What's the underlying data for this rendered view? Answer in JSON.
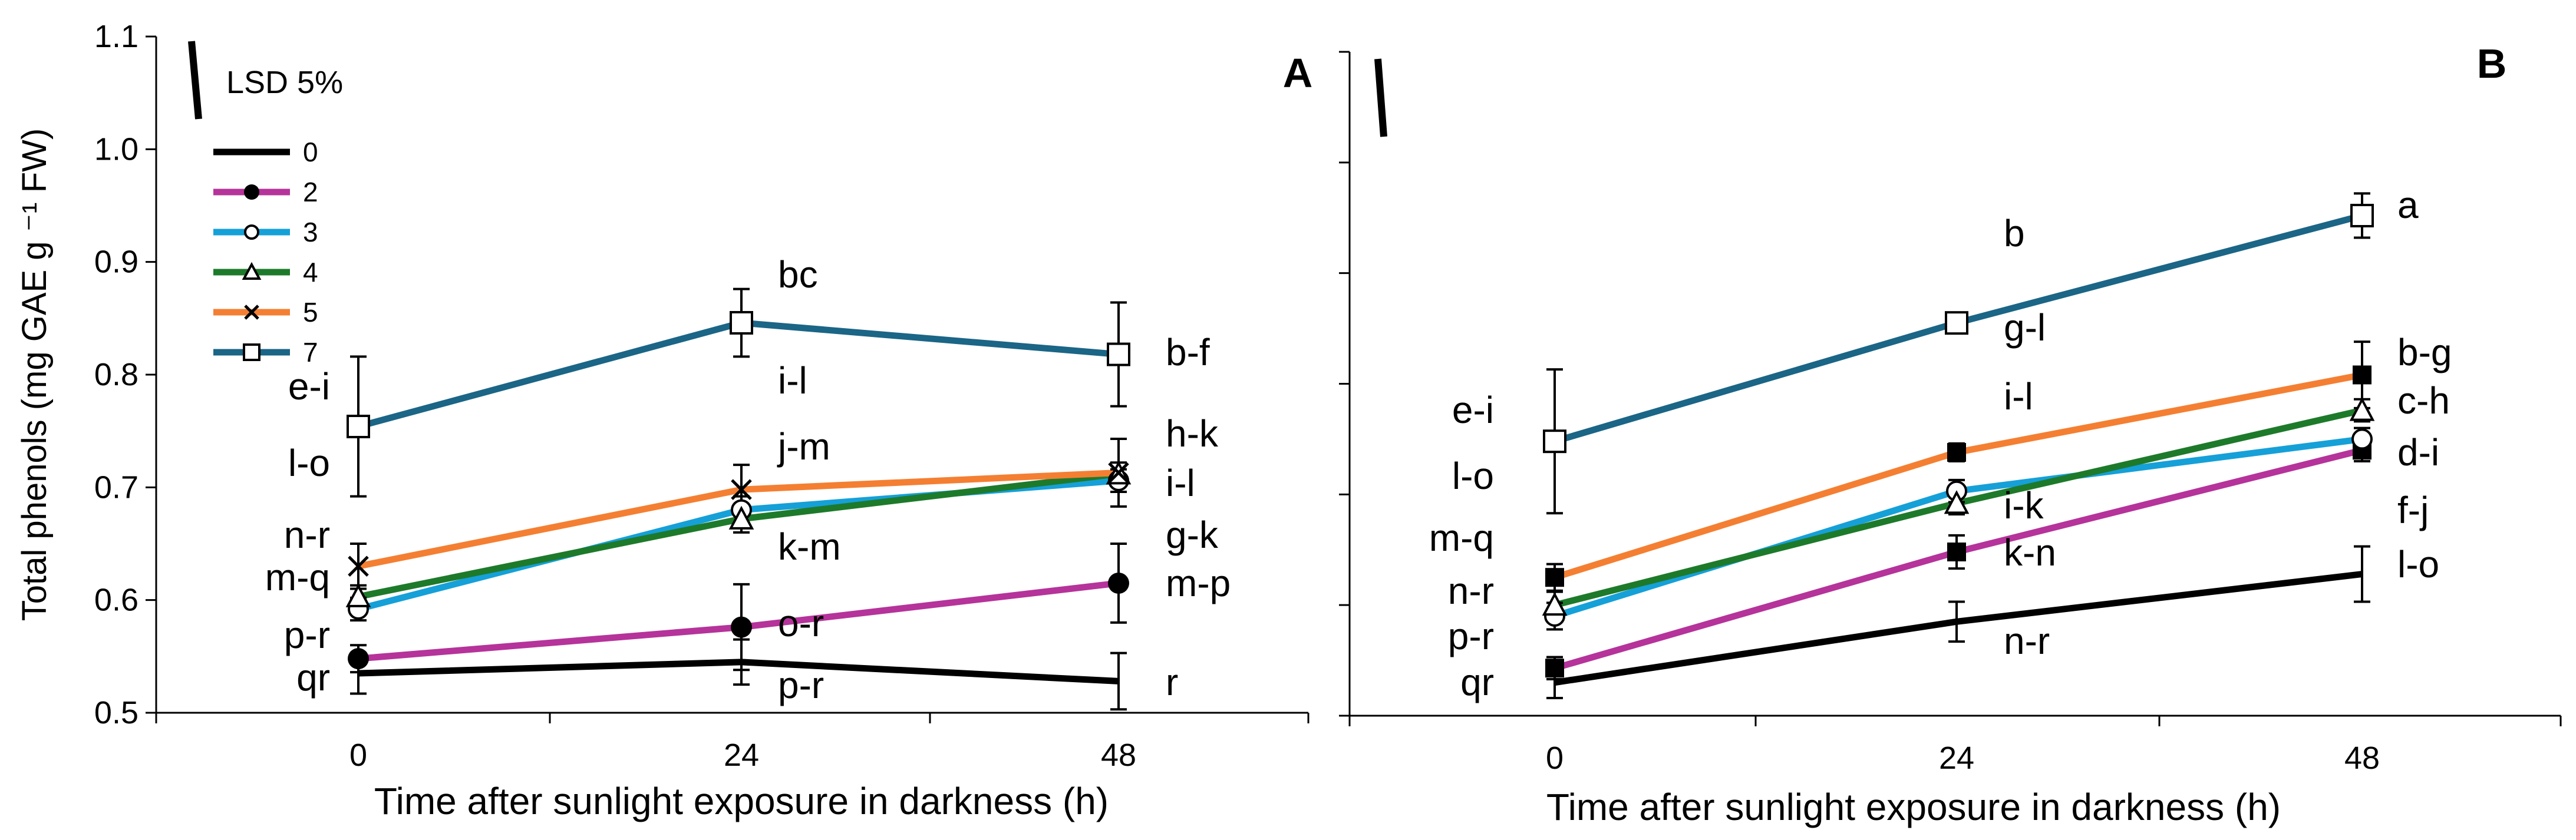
{
  "chart_data": [
    {
      "panel": "A",
      "type": "line",
      "ylabel": "Total phenols (mg GAE g ⁻¹ FW)",
      "xlabel": "Time after sunlight exposure in darkness (h)",
      "x": [
        0,
        24,
        48
      ],
      "x_ticks": [
        "0",
        "24",
        "48"
      ],
      "y_ticks": [
        "0.5",
        "0.6",
        "0.7",
        "0.8",
        "0.9",
        "1.0",
        "1.1"
      ],
      "ylim": [
        0.5,
        1.1
      ],
      "lsd_label": "LSD 5%",
      "lsd_value": 0.07,
      "series": [
        {
          "name": "0",
          "color": "#000000",
          "marker": "none",
          "values": [
            0.535,
            0.545,
            0.528
          ],
          "err": [
            0.018,
            0.02,
            0.025
          ],
          "letters": [
            "qr",
            "p-r",
            "r"
          ]
        },
        {
          "name": "2",
          "color": "#b5339a",
          "marker": "filled-circle",
          "values": [
            0.548,
            0.576,
            0.615
          ],
          "err": [
            0.012,
            0.038,
            0.035
          ],
          "letters": [
            "p-r",
            "o-r",
            "m-p"
          ]
        },
        {
          "name": "3",
          "color": "#15a0d8",
          "marker": "open-circle",
          "values": [
            0.592,
            0.68,
            0.706
          ],
          "err": [
            0.01,
            0.012,
            0.01
          ],
          "letters": [
            "m-q",
            "k-m",
            "i-l"
          ]
        },
        {
          "name": "4",
          "color": "#1d7a2a",
          "marker": "open-triangle",
          "values": [
            0.603,
            0.672,
            0.712
          ],
          "err": [
            0.01,
            0.012,
            0.01
          ],
          "letters": [
            "m-q",
            "k-m",
            "g-k"
          ]
        },
        {
          "name": "5",
          "color": "#f47f32",
          "marker": "x",
          "values": [
            0.63,
            0.698,
            0.713
          ],
          "err": [
            0.02,
            0.022,
            0.03
          ],
          "letters": [
            "n-r",
            "j-m",
            "h-k"
          ]
        },
        {
          "name": "7",
          "color": "#1b6586",
          "marker": "open-square",
          "values": [
            0.754,
            0.846,
            0.818
          ],
          "err": [
            0.062,
            0.03,
            0.046
          ],
          "letters": [
            "e-i",
            "bc",
            "b-f"
          ]
        }
      ],
      "left_letters": [
        "e-i",
        "l-o",
        "n-r",
        "m-q",
        "p-r",
        "qr"
      ],
      "mid_letters": [
        "bc",
        "i-l",
        "j-m",
        "k-m",
        "o-r",
        "p-r"
      ],
      "right_letters": [
        "b-f",
        "h-k",
        "i-l",
        "g-k",
        "m-p",
        "r"
      ]
    },
    {
      "panel": "B",
      "type": "line",
      "xlabel": "Time after sunlight exposure in darkness (h)",
      "x": [
        0,
        24,
        48
      ],
      "x_ticks": [
        "0",
        "24",
        "48"
      ],
      "ylim": [
        0.5,
        1.1
      ],
      "lsd_value": 0.07,
      "series": [
        {
          "name": "0",
          "color": "#000000",
          "marker": "none",
          "values": [
            0.53,
            0.585,
            0.628
          ],
          "err": [
            0.014,
            0.018,
            0.025
          ]
        },
        {
          "name": "2",
          "color": "#b5339a",
          "marker": "filled-square",
          "values": [
            0.543,
            0.648,
            0.74
          ],
          "err": [
            0.01,
            0.015,
            0.01
          ]
        },
        {
          "name": "3",
          "color": "#15a0d8",
          "marker": "open-circle",
          "values": [
            0.59,
            0.703,
            0.75
          ],
          "err": [
            0.012,
            0.01,
            0.01
          ]
        },
        {
          "name": "4",
          "color": "#1d7a2a",
          "marker": "open-triangle",
          "values": [
            0.6,
            0.692,
            0.776
          ],
          "err": [
            0.012,
            0.01,
            0.01
          ]
        },
        {
          "name": "5",
          "color": "#f47f32",
          "marker": "filled-square",
          "values": [
            0.625,
            0.738,
            0.808
          ],
          "err": [
            0.012,
            0.008,
            0.03
          ]
        },
        {
          "name": "7",
          "color": "#1b6586",
          "marker": "open-square",
          "values": [
            0.748,
            0.855,
            0.952
          ],
          "err": [
            0.065,
            0.006,
            0.02
          ]
        }
      ],
      "left_letters": [
        "e-i",
        "l-o",
        "m-q",
        "n-r",
        "p-r",
        "qr"
      ],
      "mid_letters": [
        "b",
        "g-l",
        "i-l",
        "i-k",
        "k-n",
        "n-r"
      ],
      "right_letters": [
        "a",
        "b-g",
        "c-h",
        "d-i",
        "f-j",
        "l-o"
      ]
    }
  ],
  "panel_labels": [
    "A",
    "B"
  ]
}
